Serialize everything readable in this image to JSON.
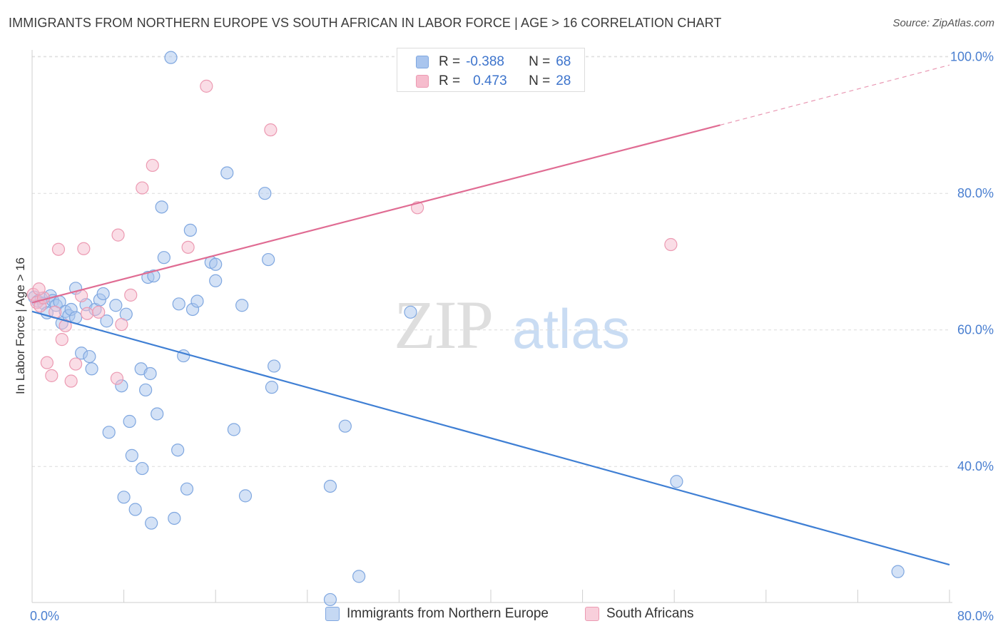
{
  "header": {
    "title": "IMMIGRANTS FROM NORTHERN EUROPE VS SOUTH AFRICAN IN LABOR FORCE | AGE > 16 CORRELATION CHART",
    "source": "Source: ZipAtlas.com"
  },
  "watermark": {
    "zip": "ZIP",
    "atlas": "atlas"
  },
  "stats": {
    "rows": [
      {
        "r_label": "R =",
        "r_value": "-0.388",
        "n_label": "N =",
        "n_value": "68",
        "color": "#a9c5ee",
        "border": "#7fa7e0"
      },
      {
        "r_label": "R =",
        "r_value": "0.473",
        "n_label": "N =",
        "n_value": "28",
        "color": "#f6bccd",
        "border": "#ec9ab2"
      }
    ]
  },
  "legend": {
    "items": [
      {
        "label": "Immigrants from Northern Europe",
        "color": "#c5d8f3",
        "border": "#7fa7e0"
      },
      {
        "label": "South Africans",
        "color": "#f8cfdb",
        "border": "#ec9ab2"
      }
    ]
  },
  "chart_data": {
    "type": "scatter",
    "xlabel": "",
    "ylabel": "In Labor Force | Age > 16",
    "xlim": [
      0,
      80
    ],
    "ylim": [
      20,
      102
    ],
    "x_tick_labels": [
      {
        "value": 0,
        "label": "0.0%"
      },
      {
        "value": 80,
        "label": "80.0%"
      }
    ],
    "y_tick_labels": [
      {
        "value": 40,
        "label": "40.0%"
      },
      {
        "value": 60,
        "label": "60.0%"
      },
      {
        "value": 80,
        "label": "80.0%"
      },
      {
        "value": 100,
        "label": "100.0%"
      }
    ],
    "grid": true,
    "legend_position": "bottom-center",
    "series": [
      {
        "name": "Immigrants from Northern Europe",
        "color": "#a9c5ee",
        "stroke": "#7fa7e0",
        "trend": {
          "x": [
            0,
            80
          ],
          "y": [
            62.7,
            25.6
          ],
          "color": "#3f7fd4"
        },
        "points": [
          [
            0.2,
            64.8
          ],
          [
            0.5,
            64.2
          ],
          [
            0.8,
            64.6
          ],
          [
            1.0,
            63.9
          ],
          [
            1.3,
            62.5
          ],
          [
            1.6,
            65.0
          ],
          [
            1.8,
            64.3
          ],
          [
            2.1,
            63.6
          ],
          [
            2.4,
            64.1
          ],
          [
            2.6,
            61.0
          ],
          [
            2.9,
            62.7
          ],
          [
            3.2,
            62.1
          ],
          [
            3.4,
            63.0
          ],
          [
            3.8,
            61.8
          ],
          [
            3.8,
            66.1
          ],
          [
            4.3,
            56.6
          ],
          [
            4.7,
            63.7
          ],
          [
            5.0,
            56.1
          ],
          [
            5.2,
            54.3
          ],
          [
            5.5,
            63.0
          ],
          [
            5.9,
            64.4
          ],
          [
            6.2,
            65.3
          ],
          [
            6.5,
            61.3
          ],
          [
            6.7,
            45.0
          ],
          [
            7.3,
            63.6
          ],
          [
            7.8,
            51.8
          ],
          [
            8.0,
            35.5
          ],
          [
            8.2,
            62.3
          ],
          [
            8.5,
            46.6
          ],
          [
            8.7,
            41.6
          ],
          [
            9.0,
            33.7
          ],
          [
            9.5,
            54.3
          ],
          [
            9.6,
            39.7
          ],
          [
            9.9,
            51.2
          ],
          [
            10.1,
            67.7
          ],
          [
            10.3,
            53.6
          ],
          [
            10.4,
            31.7
          ],
          [
            10.6,
            67.9
          ],
          [
            10.9,
            47.7
          ],
          [
            11.3,
            78.0
          ],
          [
            11.5,
            70.6
          ],
          [
            12.1,
            99.9
          ],
          [
            12.4,
            32.4
          ],
          [
            12.7,
            42.4
          ],
          [
            12.8,
            63.8
          ],
          [
            13.2,
            56.2
          ],
          [
            13.5,
            36.7
          ],
          [
            13.8,
            74.6
          ],
          [
            14.0,
            63.0
          ],
          [
            14.4,
            64.2
          ],
          [
            15.6,
            69.9
          ],
          [
            16.0,
            67.2
          ],
          [
            16.0,
            69.6
          ],
          [
            17.0,
            83.0
          ],
          [
            17.6,
            45.4
          ],
          [
            18.3,
            63.6
          ],
          [
            18.6,
            35.7
          ],
          [
            20.3,
            80.0
          ],
          [
            20.6,
            70.3
          ],
          [
            20.9,
            51.6
          ],
          [
            21.1,
            54.7
          ],
          [
            26.0,
            37.1
          ],
          [
            26.0,
            20.5
          ],
          [
            27.3,
            45.9
          ],
          [
            28.5,
            23.9
          ],
          [
            33.0,
            62.6
          ],
          [
            56.2,
            37.8
          ],
          [
            75.5,
            24.6
          ]
        ]
      },
      {
        "name": "South Africans",
        "color": "#f6bccd",
        "stroke": "#ec9ab2",
        "trend": {
          "x": [
            0,
            60
          ],
          "y": [
            64.0,
            90.0
          ],
          "color": "#e06c93"
        },
        "trend_extension": {
          "x": [
            60,
            80
          ],
          "y": [
            90.0,
            98.8
          ]
        },
        "points": [
          [
            0.1,
            65.2
          ],
          [
            0.4,
            64.0
          ],
          [
            0.7,
            63.5
          ],
          [
            1.0,
            64.7
          ],
          [
            1.3,
            55.2
          ],
          [
            1.7,
            53.3
          ],
          [
            2.0,
            62.6
          ],
          [
            2.3,
            71.8
          ],
          [
            2.6,
            58.6
          ],
          [
            2.9,
            60.6
          ],
          [
            3.4,
            52.5
          ],
          [
            3.8,
            55.0
          ],
          [
            4.3,
            65.0
          ],
          [
            4.5,
            71.9
          ],
          [
            4.8,
            62.4
          ],
          [
            5.8,
            62.6
          ],
          [
            7.4,
            52.9
          ],
          [
            7.5,
            73.9
          ],
          [
            7.8,
            60.8
          ],
          [
            9.6,
            80.8
          ],
          [
            10.5,
            84.1
          ],
          [
            13.6,
            72.1
          ],
          [
            15.2,
            95.7
          ],
          [
            20.8,
            89.3
          ],
          [
            33.6,
            77.9
          ],
          [
            55.7,
            72.5
          ],
          [
            8.6,
            65.1
          ],
          [
            0.6,
            66.0
          ]
        ]
      }
    ]
  }
}
